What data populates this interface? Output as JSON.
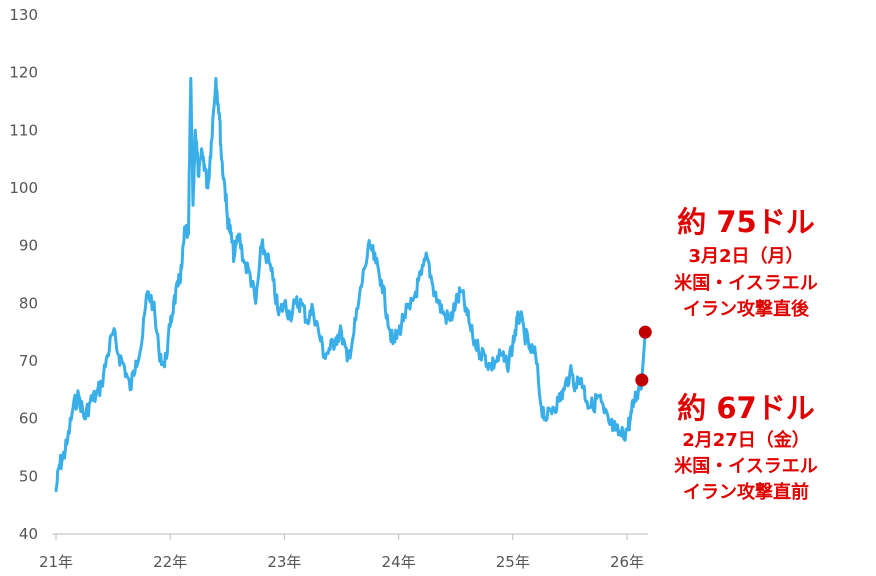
{
  "chart_data": {
    "type": "line",
    "title": "",
    "xlabel": "",
    "ylabel": "",
    "ylim": [
      40,
      130
    ],
    "y_ticks": [
      "130",
      "120",
      "110",
      "100",
      "90",
      "80",
      "70",
      "60",
      "50",
      "40"
    ],
    "x_ticks": [
      "21年",
      "22年",
      "23年",
      "24年",
      "25年",
      "26年"
    ],
    "grid": false,
    "line_color": "#3aaee8",
    "marker_color": "#c00000",
    "annotation_color": "#e00000",
    "series": [
      {
        "x": [
          2021.0,
          2021.03,
          2021.06,
          2021.1,
          2021.15,
          2021.2,
          2021.25,
          2021.3,
          2021.35,
          2021.4,
          2021.45,
          2021.5,
          2021.55,
          2021.6,
          2021.65,
          2021.7,
          2021.75,
          2021.8,
          2021.85,
          2021.9,
          2021.95,
          2022.0,
          2022.03,
          2022.07,
          2022.1,
          2022.13,
          2022.16,
          2022.18,
          2022.2,
          2022.22,
          2022.25,
          2022.28,
          2022.3,
          2022.33,
          2022.36,
          2022.4,
          2022.43,
          2022.45,
          2022.48,
          2022.5,
          2022.53,
          2022.56,
          2022.6,
          2022.65,
          2022.7,
          2022.75,
          2022.8,
          2022.85,
          2022.9,
          2022.95,
          2023.0,
          2023.05,
          2023.1,
          2023.15,
          2023.2,
          2023.25,
          2023.3,
          2023.35,
          2023.4,
          2023.45,
          2023.5,
          2023.55,
          2023.6,
          2023.65,
          2023.7,
          2023.75,
          2023.8,
          2023.85,
          2023.9,
          2023.95,
          2024.0,
          2024.05,
          2024.1,
          2024.15,
          2024.2,
          2024.25,
          2024.3,
          2024.35,
          2024.4,
          2024.45,
          2024.5,
          2024.55,
          2024.6,
          2024.65,
          2024.7,
          2024.75,
          2024.8,
          2024.85,
          2024.9,
          2024.95,
          2025.0,
          2025.03,
          2025.06,
          2025.1,
          2025.15,
          2025.2,
          2025.25,
          2025.3,
          2025.35,
          2025.4,
          2025.45,
          2025.5,
          2025.55,
          2025.6,
          2025.65,
          2025.7,
          2025.75,
          2025.8,
          2025.85,
          2025.9,
          2025.95,
          2026.0,
          2026.03,
          2026.06,
          2026.1,
          2026.13,
          2026.16
        ],
        "y": [
          47.5,
          52,
          53,
          56,
          62,
          64,
          60,
          63,
          64,
          66,
          71,
          75,
          71,
          69,
          65,
          70,
          73,
          82,
          80,
          72,
          69,
          76,
          80,
          83,
          86,
          93,
          92,
          119,
          97,
          110,
          102,
          106,
          104,
          100,
          108,
          119,
          113,
          105,
          100,
          95,
          92,
          88,
          92,
          87,
          85,
          80,
          90,
          88,
          84,
          78,
          80,
          78,
          80,
          80,
          77,
          79,
          75,
          71,
          72,
          74,
          75,
          70,
          74,
          80,
          86,
          90,
          87,
          84,
          78,
          73,
          75,
          78,
          79,
          82,
          85,
          88,
          83,
          80,
          78,
          77,
          80,
          82,
          78,
          74,
          72,
          71,
          69,
          70,
          71,
          69,
          73,
          76,
          78,
          75,
          72,
          71,
          62,
          60,
          62,
          63,
          65,
          68,
          66,
          67,
          63,
          62,
          64,
          61,
          59,
          58,
          57,
          58,
          60,
          63,
          65,
          66.7,
          75
        ]
      }
    ],
    "annotations": [
      {
        "value": "約 75ドル",
        "date": "3月2日（月）",
        "note1": "米国・イスラエル",
        "note2": "イラン攻撃直後"
      },
      {
        "value": "約 67ドル",
        "date": "2月27日（金）",
        "note1": "米国・イスラエル",
        "note2": "イラン攻撃直前"
      }
    ],
    "markers": [
      {
        "x": 2026.13,
        "y": 66.7
      },
      {
        "x": 2026.16,
        "y": 75
      }
    ]
  }
}
